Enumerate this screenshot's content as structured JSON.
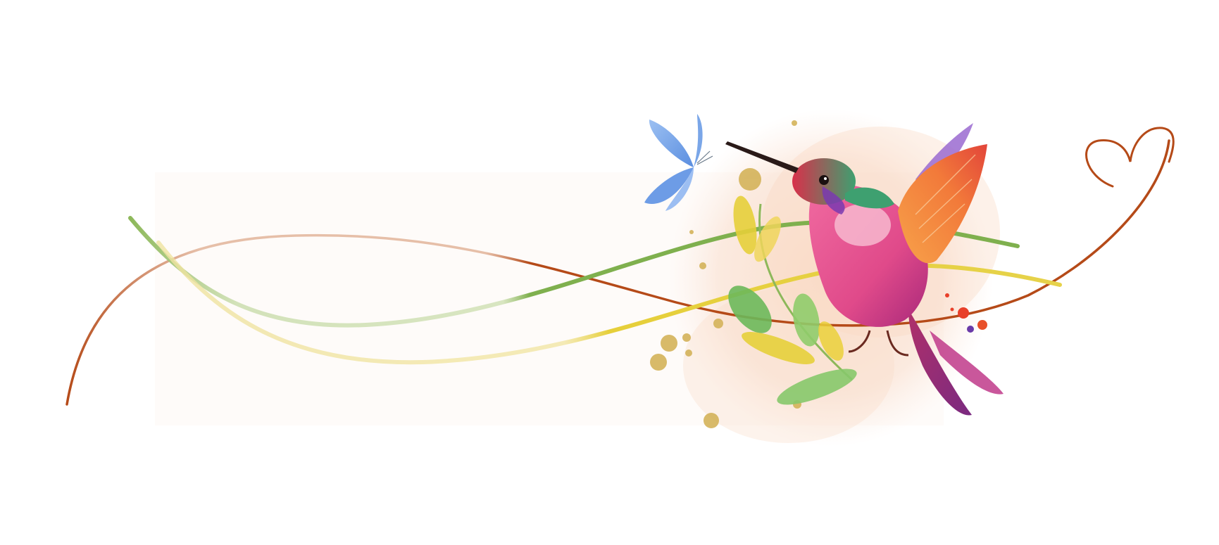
{
  "artwork": {
    "colors": {
      "background": "#ffffff",
      "panel": "#fdfaf8",
      "wash": "#f6d3bd",
      "green_ribbon": "#8db85a",
      "yellow_ribbon": "#e8d45a",
      "brown_ribbon": "#b54a18",
      "peach_ribbon": "#e4b59c",
      "butterfly": "#7aa6e8",
      "gold": "#d4b35a",
      "hummingbird_body": "#e84a8c",
      "hummingbird_wing": "#f28a3a",
      "hummingbird_head": "#4aa87a",
      "leaf_green": "#7cc45a",
      "leaf_yellow": "#e6cf3a"
    },
    "icons": [
      "hummingbird",
      "butterfly",
      "heart",
      "leaf-sprig",
      "gold-splatter"
    ]
  }
}
